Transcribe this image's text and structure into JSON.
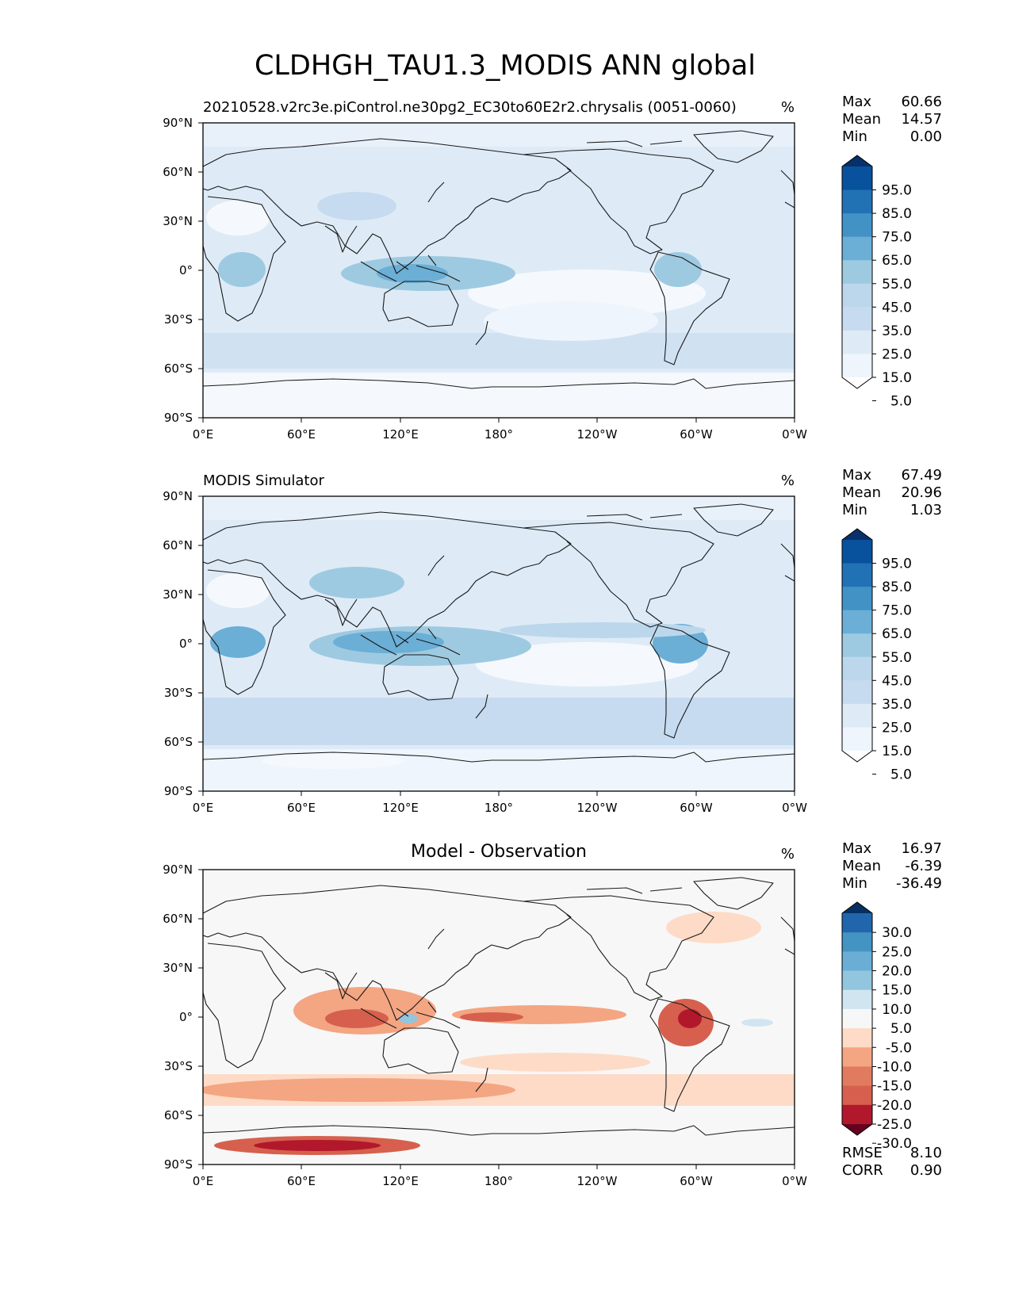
{
  "figure": {
    "title": "CLDHGH_TAU1.3_MODIS ANN global"
  },
  "axes": {
    "lat_ticks": [
      "90°N",
      "60°N",
      "30°N",
      "0°",
      "30°S",
      "60°S",
      "90°S"
    ],
    "lon_ticks": [
      "0°E",
      "60°E",
      "120°E",
      "180°",
      "120°W",
      "60°W",
      "0°W"
    ]
  },
  "panels": [
    {
      "id": "test",
      "left_title": "20210528.v2rc3e.piControl.ne30pg2_EC30to60E2r2.chrysalis (0051-0060)",
      "center_title": "",
      "units": "%",
      "stats": [
        {
          "label": "Max",
          "value": "60.66"
        },
        {
          "label": "Mean",
          "value": "14.57"
        },
        {
          "label": "Min",
          "value": "0.00"
        }
      ],
      "colorbar": {
        "ticks": [
          "95.0",
          "85.0",
          "75.0",
          "65.0",
          "55.0",
          "45.0",
          "35.0",
          "25.0",
          "15.0",
          "5.0"
        ],
        "colors": [
          "#08306b",
          "#08519c",
          "#2171b5",
          "#4292c6",
          "#6baed6",
          "#9ecae1",
          "#bcd7ec",
          "#c6dbef",
          "#deebf7",
          "#eef5fc",
          "#ffffff"
        ]
      },
      "footer_stats": []
    },
    {
      "id": "reference",
      "left_title": "MODIS Simulator",
      "center_title": "",
      "units": "%",
      "stats": [
        {
          "label": "Max",
          "value": "67.49"
        },
        {
          "label": "Mean",
          "value": "20.96"
        },
        {
          "label": "Min",
          "value": "1.03"
        }
      ],
      "colorbar": {
        "ticks": [
          "95.0",
          "85.0",
          "75.0",
          "65.0",
          "55.0",
          "45.0",
          "35.0",
          "25.0",
          "15.0",
          "5.0"
        ],
        "colors": [
          "#08306b",
          "#08519c",
          "#2171b5",
          "#4292c6",
          "#6baed6",
          "#9ecae1",
          "#bcd7ec",
          "#c6dbef",
          "#deebf7",
          "#eef5fc",
          "#ffffff"
        ]
      },
      "footer_stats": []
    },
    {
      "id": "difference",
      "left_title": "",
      "center_title": "Model - Observation",
      "units": "%",
      "stats": [
        {
          "label": "Max",
          "value": "16.97"
        },
        {
          "label": "Mean",
          "value": "-6.39"
        },
        {
          "label": "Min",
          "value": "-36.49"
        }
      ],
      "colorbar": {
        "ticks": [
          "30.0",
          "25.0",
          "20.0",
          "15.0",
          "10.0",
          "5.0",
          "-5.0",
          "-10.0",
          "-15.0",
          "-20.0",
          "-25.0",
          "-30.0"
        ],
        "colors": [
          "#053061",
          "#2166ac",
          "#4393c3",
          "#6aaed6",
          "#92c5de",
          "#d1e5f0",
          "#f7f7f7",
          "#fddbc7",
          "#f4a582",
          "#e07b5f",
          "#d6604d",
          "#b2182b",
          "#67001f"
        ]
      },
      "footer_stats": [
        {
          "label": "RMSE",
          "value": "8.10"
        },
        {
          "label": "CORR",
          "value": "0.90"
        }
      ]
    }
  ]
}
